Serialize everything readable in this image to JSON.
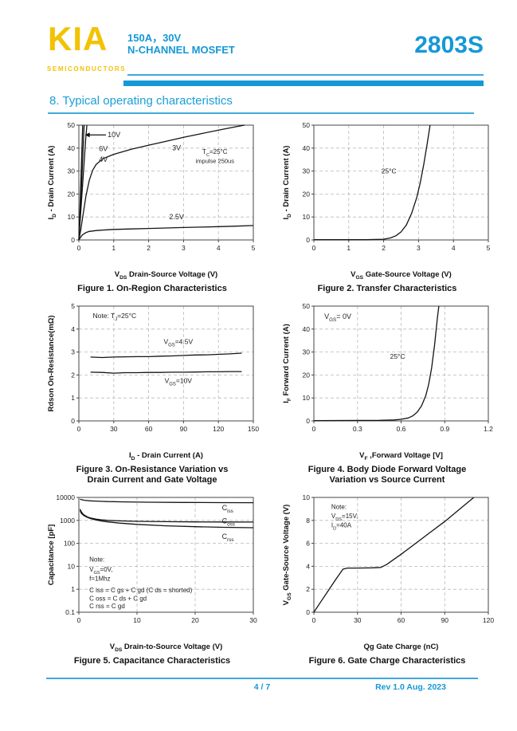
{
  "header": {
    "logo": "KIA",
    "logo_sub": "SEMICONDUCTORS",
    "rating": "150A，30V",
    "device_type": "N-CHANNEL MOSFET",
    "part_number": "2803S"
  },
  "section_title": "8. Typical operating characteristics",
  "footer": {
    "page": "4 / 7",
    "rev": "Rev 1.0 Aug. 2023"
  },
  "colors": {
    "brand_blue": "#1598d6",
    "brand_blue_light": "#3fa9dd",
    "brand_yellow": "#f2c204",
    "curve": "#141414",
    "grid": "#b9b9b9"
  },
  "chart_data": [
    {
      "type": "line",
      "title": "Figure 1. On-Region Characteristics",
      "caption_lines": [
        "Figure 1. On-Region Characteristics"
      ],
      "xlabel": "V~DS~ Drain-Source Voltage (V)",
      "ylabel": "I~D~ - Drain Current (A)",
      "xlim": [
        0,
        5
      ],
      "xticks": [
        0,
        1,
        2,
        3,
        4,
        5
      ],
      "ylim": [
        0,
        50
      ],
      "yticks": [
        0,
        10,
        20,
        30,
        40,
        50
      ],
      "yscale": "linear",
      "grid": true,
      "series": [
        {
          "name": "VGS=10V",
          "points": [
            [
              0,
              0
            ],
            [
              0.05,
              22
            ],
            [
              0.11,
              50
            ]
          ]
        },
        {
          "name": "VGS=6V",
          "points": [
            [
              0,
              0
            ],
            [
              0.07,
              22
            ],
            [
              0.15,
              50
            ]
          ]
        },
        {
          "name": "VGS=4V",
          "points": [
            [
              0,
              0
            ],
            [
              0.09,
              20
            ],
            [
              0.2,
              45
            ],
            [
              0.23,
              50
            ]
          ]
        },
        {
          "name": "VGS=3V",
          "points": [
            [
              0,
              0
            ],
            [
              0.05,
              4
            ],
            [
              0.1,
              9
            ],
            [
              0.15,
              14
            ],
            [
              0.2,
              19
            ],
            [
              0.3,
              26
            ],
            [
              0.4,
              30.5
            ],
            [
              0.5,
              33
            ],
            [
              0.7,
              35.5
            ],
            [
              1,
              37.3
            ],
            [
              1.5,
              39.5
            ],
            [
              2,
              41.3
            ],
            [
              2.5,
              43
            ],
            [
              3,
              44.7
            ],
            [
              3.5,
              46.3
            ],
            [
              4,
              47.8
            ],
            [
              4.5,
              49.3
            ],
            [
              4.75,
              50
            ]
          ]
        },
        {
          "name": "VGS=2.5V",
          "points": [
            [
              0,
              0
            ],
            [
              0.05,
              1.2
            ],
            [
              0.1,
              2.2
            ],
            [
              0.2,
              3.2
            ],
            [
              0.3,
              3.7
            ],
            [
              0.5,
              4.1
            ],
            [
              0.8,
              4.4
            ],
            [
              1,
              4.6
            ],
            [
              1.5,
              4.8
            ],
            [
              2,
              5.0
            ],
            [
              2.5,
              5.2
            ],
            [
              3,
              5.4
            ],
            [
              3.5,
              5.6
            ],
            [
              4,
              5.8
            ],
            [
              4.5,
              6.0
            ],
            [
              5,
              6.3
            ]
          ]
        }
      ],
      "annotations": [
        {
          "text": "10V",
          "fx": 0.165,
          "fy": 0.105,
          "anchor": "start",
          "size": 9
        },
        {
          "text": "6V",
          "fx": 0.115,
          "fy": 0.225,
          "anchor": "start",
          "size": 9
        },
        {
          "text": "4V",
          "fx": 0.115,
          "fy": 0.32,
          "anchor": "start",
          "size": 9
        },
        {
          "text": "3V",
          "fx": 0.56,
          "fy": 0.22,
          "size": 9
        },
        {
          "text": "2.5V",
          "fx": 0.56,
          "fy": 0.82,
          "size": 9
        },
        {
          "text": "T~C~=25°C",
          "fx": 0.78,
          "fy": 0.25,
          "size": 8
        },
        {
          "text": "impulse 250us",
          "fx": 0.78,
          "fy": 0.33,
          "size": 7.5
        }
      ],
      "arrows": [
        {
          "fy": 0.085,
          "fx_from": 0.155,
          "fx_to": 0.035
        }
      ]
    },
    {
      "type": "line",
      "title": "Figure 2. Transfer Characteristics",
      "caption_lines": [
        "Figure 2. Transfer Characteristics"
      ],
      "xlabel": "V~GS~ Gate-Source Voltage (V)",
      "ylabel": "I~D~ - Drain Current (A)",
      "xlim": [
        0,
        5
      ],
      "xticks": [
        0,
        1,
        2,
        3,
        4,
        5
      ],
      "ylim": [
        0,
        50
      ],
      "yticks": [
        0,
        10,
        20,
        30,
        40,
        50
      ],
      "yscale": "linear",
      "grid": true,
      "series": [
        {
          "name": "25C",
          "points": [
            [
              0,
              0.1
            ],
            [
              1.5,
              0.1
            ],
            [
              2.0,
              0.3
            ],
            [
              2.2,
              0.9
            ],
            [
              2.35,
              1.8
            ],
            [
              2.5,
              3.5
            ],
            [
              2.65,
              6.5
            ],
            [
              2.8,
              11.5
            ],
            [
              2.95,
              18.5
            ],
            [
              3.05,
              25
            ],
            [
              3.15,
              33
            ],
            [
              3.25,
              42
            ],
            [
              3.33,
              50
            ]
          ]
        }
      ],
      "annotations": [
        {
          "text": "25°C",
          "fx": 0.43,
          "fy": 0.42,
          "size": 8.5
        }
      ]
    },
    {
      "type": "line",
      "title": "Figure 3. On-Resistance Variation vs Drain Current and Gate Voltage",
      "caption_lines": [
        "Figure 3. On-Resistance Variation  vs",
        "Drain Current and Gate Voltage"
      ],
      "xlabel": "I~D~ - Drain Current (A)",
      "ylabel": "Rdson On-Resistance(mΩ)",
      "xlim": [
        0,
        150
      ],
      "xticks": [
        0,
        30,
        60,
        90,
        120,
        150
      ],
      "ylim": [
        0,
        5
      ],
      "yticks": [
        0,
        1,
        2,
        3,
        4,
        5
      ],
      "yscale": "linear",
      "grid": true,
      "series": [
        {
          "name": "VGS=4.5V",
          "points": [
            [
              10,
              2.78
            ],
            [
              20,
              2.76
            ],
            [
              30,
              2.78
            ],
            [
              40,
              2.79
            ],
            [
              50,
              2.8
            ],
            [
              60,
              2.8
            ],
            [
              70,
              2.82
            ],
            [
              80,
              2.83
            ],
            [
              90,
              2.85
            ],
            [
              100,
              2.87
            ],
            [
              110,
              2.88
            ],
            [
              120,
              2.9
            ],
            [
              130,
              2.92
            ],
            [
              140,
              2.95
            ]
          ]
        },
        {
          "name": "VGS=10V",
          "points": [
            [
              10,
              2.12
            ],
            [
              20,
              2.11
            ],
            [
              30,
              2.08
            ],
            [
              40,
              2.1
            ],
            [
              50,
              2.1
            ],
            [
              60,
              2.11
            ],
            [
              70,
              2.11
            ],
            [
              80,
              2.12
            ],
            [
              90,
              2.12
            ],
            [
              100,
              2.13
            ],
            [
              110,
              2.14
            ],
            [
              120,
              2.14
            ],
            [
              130,
              2.15
            ],
            [
              140,
              2.15
            ]
          ]
        }
      ],
      "annotations": [
        {
          "text": "Note:  T~J~=25°C",
          "fx": 0.08,
          "fy": 0.105,
          "anchor": "start",
          "size": 8.5
        },
        {
          "text": "V~GS~=4.5V",
          "fx": 0.57,
          "fy": 0.33,
          "size": 8.5
        },
        {
          "text": "V~GS~=10V",
          "fx": 0.57,
          "fy": 0.67,
          "size": 8.5
        }
      ]
    },
    {
      "type": "line",
      "title": "Figure 4. Body Diode Forward Voltage Variation vs Source Current",
      "caption_lines": [
        "Figure 4. Body Diode Forward Voltage",
        "Variation vs Source Current"
      ],
      "xlabel": "V~F~ ,Forward Voltage [V]",
      "ylabel": "I~F~ Forward Current (A)",
      "xlim": [
        0,
        1.2
      ],
      "xticks": [
        0,
        0.3,
        0.6,
        0.9,
        1.2
      ],
      "ylim": [
        0,
        50
      ],
      "yticks": [
        0,
        10,
        20,
        30,
        40,
        50
      ],
      "yscale": "linear",
      "grid": true,
      "series": [
        {
          "name": "25C",
          "points": [
            [
              0,
              0.15
            ],
            [
              0.3,
              0.2
            ],
            [
              0.45,
              0.25
            ],
            [
              0.55,
              0.4
            ],
            [
              0.6,
              0.7
            ],
            [
              0.65,
              1.3
            ],
            [
              0.68,
              2.2
            ],
            [
              0.71,
              3.8
            ],
            [
              0.74,
              6.5
            ],
            [
              0.77,
              11
            ],
            [
              0.79,
              16
            ],
            [
              0.81,
              23
            ],
            [
              0.83,
              33
            ],
            [
              0.85,
              45
            ],
            [
              0.86,
              50
            ]
          ]
        }
      ],
      "annotations": [
        {
          "text": "V~GS~= 0V",
          "fx": 0.06,
          "fy": 0.11,
          "anchor": "start",
          "size": 9
        },
        {
          "text": "25°C",
          "fx": 0.48,
          "fy": 0.46,
          "size": 8.5
        }
      ]
    },
    {
      "type": "line",
      "title": "Figure 5. Capacitance Characteristics",
      "caption_lines": [
        "Figure 5. Capacitance Characteristics"
      ],
      "xlabel": "V~DS~  Drain-to-Source Voltage (V)",
      "ylabel": "Capacitance [pF]",
      "xlim": [
        0,
        30
      ],
      "xticks": [
        0,
        10,
        20,
        30
      ],
      "ylim": [
        0.1,
        10000
      ],
      "yticks": [
        0.1,
        1,
        10,
        100,
        1000,
        10000
      ],
      "yscale": "log",
      "grid": true,
      "series": [
        {
          "name": "Ciss",
          "points": [
            [
              0.2,
              8300
            ],
            [
              0.5,
              7900
            ],
            [
              1,
              7500
            ],
            [
              2,
              7100
            ],
            [
              3,
              6900
            ],
            [
              5,
              6600
            ],
            [
              8,
              6400
            ],
            [
              12,
              6200
            ],
            [
              18,
              6050
            ],
            [
              24,
              5950
            ],
            [
              30,
              5900
            ]
          ]
        },
        {
          "name": "Coss",
          "points": [
            [
              0.2,
              3100
            ],
            [
              0.4,
              2400
            ],
            [
              0.7,
              1900
            ],
            [
              1,
              1650
            ],
            [
              1.5,
              1400
            ],
            [
              2,
              1280
            ],
            [
              3,
              1130
            ],
            [
              4,
              1050
            ],
            [
              5,
              1000
            ],
            [
              7,
              950
            ],
            [
              10,
              910
            ],
            [
              15,
              880
            ],
            [
              20,
              860
            ],
            [
              25,
              850
            ],
            [
              30,
              845
            ]
          ]
        },
        {
          "name": "Crss",
          "points": [
            [
              0.2,
              2700
            ],
            [
              0.4,
              2100
            ],
            [
              0.7,
              1750
            ],
            [
              1,
              1550
            ],
            [
              1.5,
              1330
            ],
            [
              2,
              1200
            ],
            [
              3,
              1030
            ],
            [
              4,
              930
            ],
            [
              5,
              860
            ],
            [
              7,
              760
            ],
            [
              10,
              670
            ],
            [
              15,
              580
            ],
            [
              20,
              530
            ],
            [
              25,
              500
            ],
            [
              30,
              480
            ]
          ]
        }
      ],
      "annotations": [
        {
          "text": "C~iss~",
          "fx": 0.82,
          "fy": 0.11,
          "anchor": "start",
          "size": 9
        },
        {
          "text": "C~oss~",
          "fx": 0.82,
          "fy": 0.225,
          "anchor": "start",
          "size": 9
        },
        {
          "text": "C~rss~",
          "fx": 0.82,
          "fy": 0.36,
          "anchor": "start",
          "size": 9
        },
        {
          "text": "Note:",
          "fx": 0.06,
          "fy": 0.56,
          "anchor": "start",
          "size": 8
        },
        {
          "text": "V~GS~=0V,",
          "fx": 0.06,
          "fy": 0.645,
          "anchor": "start",
          "size": 8
        },
        {
          "text": "f=1Mhz",
          "fx": 0.06,
          "fy": 0.725,
          "anchor": "start",
          "size": 8
        },
        {
          "text": "C iss = C gs + C gd (C ds = shorted)",
          "fx": 0.06,
          "fy": 0.825,
          "anchor": "start",
          "size": 8
        },
        {
          "text": "C oss = C ds + C gd",
          "fx": 0.06,
          "fy": 0.9,
          "anchor": "start",
          "size": 8
        },
        {
          "text": "C rss = C gd",
          "fx": 0.06,
          "fy": 0.965,
          "anchor": "start",
          "size": 8
        }
      ]
    },
    {
      "type": "line",
      "title": "Figure 6. Gate Charge Characteristics",
      "caption_lines": [
        "Figure 6. Gate Charge Characteristics"
      ],
      "xlabel": "Qg Gate Charge (nC)",
      "ylabel": "V~GS~ Gate-Source Voltage (V)",
      "xlim": [
        0,
        120
      ],
      "xticks": [
        0,
        30,
        60,
        90,
        120
      ],
      "ylim": [
        0,
        10
      ],
      "yticks": [
        0,
        2,
        4,
        6,
        8,
        10
      ],
      "yscale": "linear",
      "grid": true,
      "series": [
        {
          "name": "Qg",
          "points": [
            [
              0,
              0
            ],
            [
              5,
              0.95
            ],
            [
              10,
              1.9
            ],
            [
              15,
              2.85
            ],
            [
              20,
              3.75
            ],
            [
              23,
              3.85
            ],
            [
              30,
              3.85
            ],
            [
              40,
              3.87
            ],
            [
              46,
              3.9
            ],
            [
              50,
              4.15
            ],
            [
              60,
              5.05
            ],
            [
              70,
              6.0
            ],
            [
              80,
              6.95
            ],
            [
              90,
              7.9
            ],
            [
              100,
              8.95
            ],
            [
              110,
              10
            ]
          ]
        }
      ],
      "annotations": [
        {
          "text": "Note:",
          "fx": 0.1,
          "fy": 0.1,
          "anchor": "start",
          "size": 8
        },
        {
          "text": "V~DS~=15V,",
          "fx": 0.1,
          "fy": 0.18,
          "anchor": "start",
          "size": 8
        },
        {
          "text": "I~D~=40A",
          "fx": 0.1,
          "fy": 0.26,
          "anchor": "start",
          "size": 8
        }
      ]
    }
  ]
}
